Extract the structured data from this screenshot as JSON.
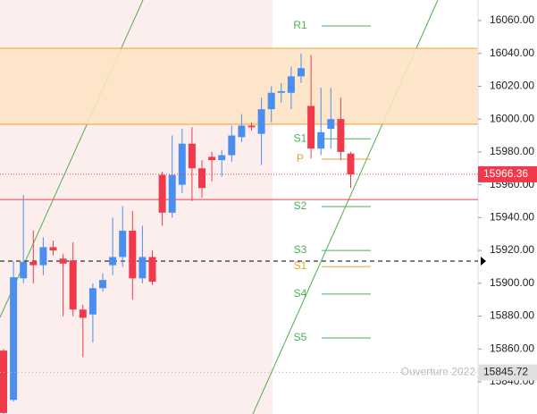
{
  "chart_data": {
    "type": "candlestick",
    "open": [
      15859,
      15829,
      15903,
      15913,
      15911,
      15922,
      15915,
      15914,
      15884,
      15881,
      15897,
      15911,
      15916,
      15932,
      15903,
      15916,
      15966,
      15943,
      15960,
      15985,
      15970,
      15977,
      15975,
      15978,
      15989,
      15996,
      15991,
      16006,
      16016,
      16016,
      16026,
      16008,
      15982,
      15994,
      16000,
      15979
    ],
    "high": [
      15860,
      15913.5,
      15953.8,
      15932,
      15928,
      15926,
      15918,
      15925,
      15887,
      15900,
      15906,
      15940,
      15947,
      15944,
      15935,
      15920,
      15968,
      15990,
      15994,
      15995,
      15975,
      15980,
      15981,
      15996,
      16003,
      15998,
      16013,
      16020,
      16022,
      16032,
      16040,
      16039,
      16019,
      16019,
      16013,
      15980
    ],
    "low": [
      15820,
      15828,
      15900,
      15900,
      15905,
      15917,
      15880,
      15880,
      15855,
      15864,
      15895,
      15905,
      15910,
      15890,
      15900,
      15899,
      15935,
      15940,
      15955,
      15950,
      15952,
      15962,
      15965,
      15974,
      15986,
      15993,
      15972,
      15998,
      16010,
      16006,
      16022,
      15976,
      15978,
      15982,
      15975,
      15958
    ],
    "close": [
      15821,
      15903.7,
      15913,
      15911,
      15922,
      15920,
      15912,
      15884,
      15879,
      15897,
      15902,
      15916,
      15932,
      15903,
      15916,
      15901,
      15943,
      15966,
      15985,
      15970,
      15958,
      15975,
      15978,
      15990,
      15996,
      15995,
      16006,
      16016,
      16017,
      16026,
      16031,
      15982,
      15992,
      16000,
      15980,
      15966.36
    ],
    "up_color": "#4a8ff0",
    "down_color": "#f03a4c",
    "ylim": [
      15820.4,
      16072.5
    ],
    "yticks": [
      {
        "value": 15840,
        "label": "15840.00"
      },
      {
        "value": 15860,
        "label": "15860.00"
      },
      {
        "value": 15880,
        "label": "15880.00"
      },
      {
        "value": 15900,
        "label": "15900.00"
      },
      {
        "value": 15920,
        "label": "15920.00"
      },
      {
        "value": 15940,
        "label": "15940.00"
      },
      {
        "value": 15960,
        "label": "15960.00"
      },
      {
        "value": 15980,
        "label": "15980.00"
      },
      {
        "value": 16000,
        "label": "16000.00"
      },
      {
        "value": 16020,
        "label": "16020.00"
      },
      {
        "value": 16040,
        "label": "16040.00"
      },
      {
        "value": 16060,
        "label": "16060.00"
      }
    ],
    "zone": {
      "from": 15996.8,
      "to": 16043.1,
      "color": "#fde3c4"
    },
    "lines": [
      {
        "value": 15951,
        "color": "#f03a4c",
        "style": "solid"
      },
      {
        "value": 15913.5,
        "color": "#000000",
        "style": "dashed"
      }
    ],
    "levels": [
      {
        "label": "R1",
        "value": 16056.7,
        "color": "#4caf50"
      },
      {
        "label": "S1",
        "value": 15988,
        "color": "#4caf50"
      },
      {
        "label": "P",
        "value": 15975.6,
        "color": "#f0a030"
      },
      {
        "label": "S2",
        "value": 15946.7,
        "color": "#4caf50"
      },
      {
        "label": "S3",
        "value": 15920,
        "color": "#4caf50"
      },
      {
        "label": "S1",
        "value": 15910.2,
        "color": "#f0a030"
      },
      {
        "label": "S4",
        "value": 15893.4,
        "color": "#4caf50"
      },
      {
        "label": "S5",
        "value": 15866.7,
        "color": "#4caf50"
      }
    ],
    "last_price": 15966.36,
    "year_open": {
      "label": "Ouverture 2022",
      "value": 15845.72
    }
  }
}
